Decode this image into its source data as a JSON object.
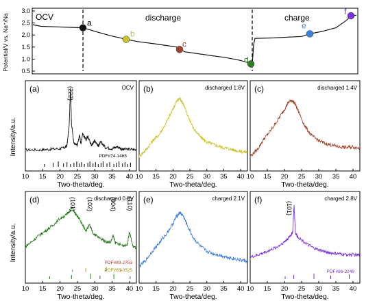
{
  "top": {
    "ylabel": "Potential/V vs. Na⁺/Na",
    "yticks": [
      "3.0",
      "2.5",
      "2.0",
      "1.5",
      "1.0",
      "0.5"
    ],
    "ylim": [
      0.5,
      3.0
    ],
    "labels": {
      "ocv": "OCV",
      "discharge": "discharge",
      "charge": "charge"
    },
    "points": [
      {
        "label": "a",
        "color": "#111111",
        "v": 2.3
      },
      {
        "label": "b",
        "color": "#c9c22a",
        "v": 1.82
      },
      {
        "label": "c",
        "color": "#a0442a",
        "v": 1.4
      },
      {
        "label": "d",
        "color": "#2e7d22",
        "v": 0.8
      },
      {
        "label": "e",
        "color": "#3f7fe0",
        "v": 2.05
      },
      {
        "label": "f",
        "color": "#7b2ee0",
        "v": 2.8
      }
    ]
  },
  "chart_data": [
    {
      "type": "line",
      "panel": "(a)",
      "annotation": "OCV",
      "peak_labels": [
        "(222)"
      ],
      "ref_label": "PDF#74-1465",
      "xlabel": "Two-theta/deg.",
      "ylabel": "Intensity/a.u.",
      "xlim": [
        10,
        42
      ],
      "xticks": [
        "10",
        "15",
        "20",
        "25",
        "30",
        "35",
        "40"
      ],
      "color": "#111111",
      "series": [
        {
          "x": [
            10,
            14,
            17,
            20,
            21.5,
            22,
            22.6,
            23,
            23.3,
            24,
            25,
            25.6,
            26,
            26.5,
            27.5,
            28,
            29,
            29.6,
            30,
            31,
            31.8,
            33,
            35,
            36.5,
            38,
            40,
            42
          ],
          "y": [
            0.05,
            0.05,
            0.06,
            0.07,
            0.09,
            0.12,
            0.4,
            1.0,
            0.45,
            0.14,
            0.12,
            0.28,
            0.14,
            0.3,
            0.2,
            0.26,
            0.12,
            0.16,
            0.2,
            0.11,
            0.17,
            0.09,
            0.07,
            0.1,
            0.06,
            0.06,
            0.05
          ]
        }
      ]
    },
    {
      "type": "line",
      "panel": "(b)",
      "annotation": "discharged 1.8V",
      "xlabel": "Two-theta/deg.",
      "xlim": [
        10,
        42
      ],
      "xticks": [
        "10",
        "15",
        "20",
        "25",
        "30",
        "35",
        "40"
      ],
      "color": "#c9c22a",
      "series": [
        {
          "x": [
            10,
            12,
            14,
            16,
            18,
            20,
            21,
            22,
            23,
            24,
            26,
            28,
            30,
            32,
            34,
            36,
            38,
            40,
            42
          ],
          "y": [
            0.12,
            0.2,
            0.32,
            0.4,
            0.55,
            0.72,
            0.82,
            0.86,
            0.8,
            0.68,
            0.48,
            0.37,
            0.3,
            0.27,
            0.24,
            0.22,
            0.2,
            0.18,
            0.17
          ]
        }
      ]
    },
    {
      "type": "line",
      "panel": "(c)",
      "annotation": "discharged 1.4V",
      "xlabel": "Two-theta/deg.",
      "xlim": [
        10,
        42
      ],
      "xticks": [
        "10",
        "15",
        "20",
        "25",
        "30",
        "35",
        "40"
      ],
      "color": "#a0442a",
      "series": [
        {
          "x": [
            10,
            12,
            14,
            16,
            18,
            20,
            21,
            22,
            23,
            24,
            26,
            28,
            30,
            32,
            34,
            36,
            38,
            40,
            42
          ],
          "y": [
            0.12,
            0.2,
            0.34,
            0.45,
            0.58,
            0.72,
            0.8,
            0.84,
            0.8,
            0.7,
            0.5,
            0.38,
            0.32,
            0.28,
            0.26,
            0.24,
            0.23,
            0.24,
            0.22
          ]
        }
      ]
    },
    {
      "type": "line",
      "panel": "(d)",
      "annotation": "discharged 0.8V",
      "peak_labels": [
        "(101)",
        "(102)",
        "(004)",
        "(110)"
      ],
      "ref_labels": [
        "PDF#89-2753",
        "PDF#65-0525"
      ],
      "xlabel": "Two-theta/deg.",
      "ylabel": "Intensity/a.u.",
      "xlim": [
        10,
        42
      ],
      "xticks": [
        "10",
        "15",
        "20",
        "25",
        "30",
        "35",
        "40"
      ],
      "color": "#2e7d22",
      "series": [
        {
          "x": [
            10,
            12,
            14,
            16,
            18,
            20,
            22,
            23.5,
            24.5,
            25.5,
            26.5,
            27.5,
            28.5,
            29.5,
            31,
            33,
            34.5,
            35.3,
            36,
            38,
            39.3,
            40,
            41,
            42
          ],
          "y": [
            0.28,
            0.36,
            0.45,
            0.52,
            0.6,
            0.7,
            0.76,
            0.86,
            0.76,
            0.7,
            0.6,
            0.52,
            0.6,
            0.48,
            0.42,
            0.36,
            0.34,
            0.44,
            0.33,
            0.3,
            0.3,
            0.5,
            0.28,
            0.26
          ]
        }
      ]
    },
    {
      "type": "line",
      "panel": "(e)",
      "annotation": "charged 2.1V",
      "xlabel": "Two-theta/deg.",
      "xlim": [
        10,
        42
      ],
      "xticks": [
        "10",
        "15",
        "20",
        "25",
        "30",
        "35",
        "40"
      ],
      "color": "#3f7fe0",
      "series": [
        {
          "x": [
            10,
            12,
            14,
            16,
            18,
            20,
            21,
            22,
            23,
            24,
            26,
            28,
            30,
            32,
            34,
            36,
            38,
            40,
            42
          ],
          "y": [
            0.14,
            0.22,
            0.34,
            0.44,
            0.55,
            0.68,
            0.77,
            0.82,
            0.78,
            0.68,
            0.5,
            0.4,
            0.33,
            0.3,
            0.28,
            0.26,
            0.24,
            0.22,
            0.21
          ]
        }
      ]
    },
    {
      "type": "line",
      "panel": "(f)",
      "annotation": "charged 2.8V",
      "peak_labels": [
        "(101)"
      ],
      "ref_label": "PDF#86-2249",
      "xlabel": "Two-theta/deg.",
      "xlim": [
        10,
        42
      ],
      "xticks": [
        "10",
        "15",
        "20",
        "25",
        "30",
        "35",
        "40"
      ],
      "color": "#7b2ee0",
      "series": [
        {
          "x": [
            10,
            12,
            14,
            16,
            18,
            20,
            21,
            22,
            22.4,
            22.8,
            23.2,
            24,
            26,
            28,
            30,
            32,
            34,
            36,
            38,
            40,
            42
          ],
          "y": [
            0.12,
            0.15,
            0.19,
            0.23,
            0.28,
            0.35,
            0.4,
            0.46,
            0.5,
            0.9,
            0.48,
            0.42,
            0.34,
            0.27,
            0.23,
            0.2,
            0.18,
            0.17,
            0.16,
            0.16,
            0.15
          ]
        }
      ]
    }
  ]
}
